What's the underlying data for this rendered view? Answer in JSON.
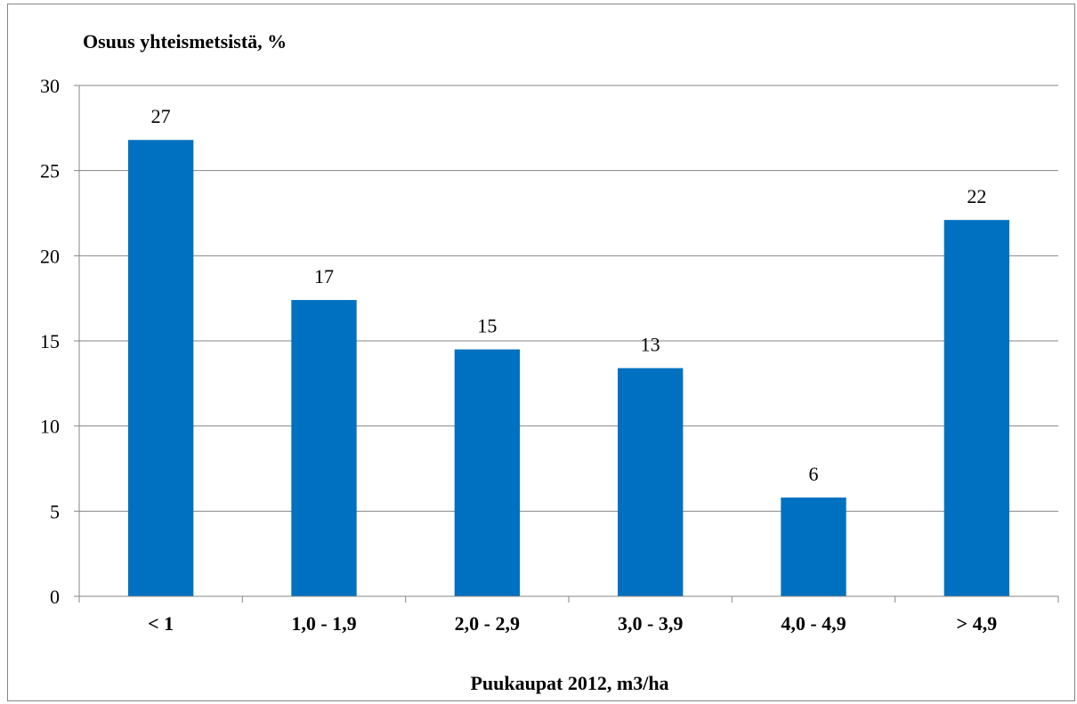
{
  "chart_data": {
    "type": "bar",
    "ylabel": "Osuus yhteismetsistä, %",
    "xlabel": "Puukaupat 2012, m3/ha",
    "categories": [
      "< 1",
      "1,0 - 1,9",
      "2,0 - 2,9",
      "3,0 - 3,9",
      "4,0 - 4,9",
      "> 4,9"
    ],
    "values": [
      26.8,
      17.4,
      14.5,
      13.4,
      5.8,
      22.1
    ],
    "data_labels": [
      "27",
      "17",
      "15",
      "13",
      "6",
      "22"
    ],
    "ylim": [
      0,
      30
    ],
    "yticks": [
      "0",
      "5",
      "10",
      "15",
      "20",
      "25",
      "30"
    ],
    "grid": true,
    "legend": "none",
    "bar_color": "#0070C0",
    "grid_color": "#868686"
  }
}
